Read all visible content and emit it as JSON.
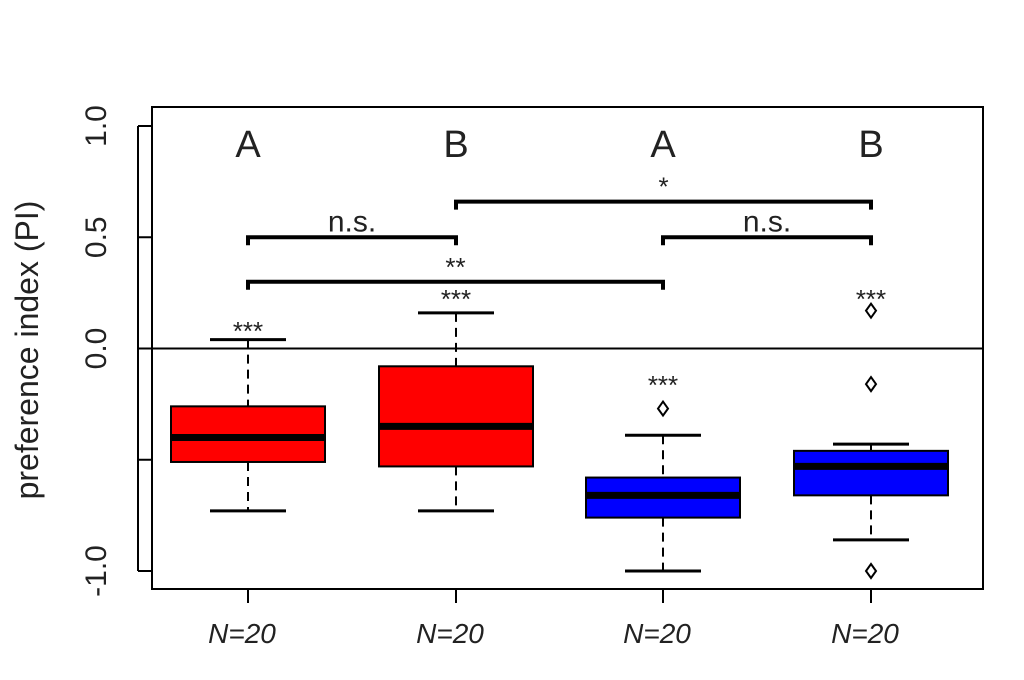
{
  "chart_data": {
    "type": "box",
    "ylabel": "preference index (PI)",
    "ylim": [
      -1.08,
      1.08
    ],
    "yticks": [
      {
        "value": 1.0,
        "label": "1.0"
      },
      {
        "value": 0.5,
        "label": "0.5"
      },
      {
        "value": 0.0,
        "label": "0.0"
      },
      {
        "value": -0.5,
        "label": ""
      },
      {
        "value": -1.0,
        "label": "-1.0"
      }
    ],
    "reference_line": 0,
    "groups": [
      {
        "n_label": "N=20",
        "color": "#ff0000",
        "letter": "A",
        "stars": "***",
        "whisker_low": -0.73,
        "q1": -0.51,
        "median": -0.4,
        "q3": -0.26,
        "whisker_high": 0.04,
        "outliers": []
      },
      {
        "n_label": "N=20",
        "color": "#ff0000",
        "letter": "B",
        "stars": "***",
        "whisker_low": -0.73,
        "q1": -0.53,
        "median": -0.35,
        "q3": -0.08,
        "whisker_high": 0.16,
        "outliers": []
      },
      {
        "n_label": "N=20",
        "color": "#0000ff",
        "letter": "A",
        "stars": "***",
        "whisker_low": -1.0,
        "q1": -0.76,
        "median": -0.66,
        "q3": -0.58,
        "whisker_high": -0.39,
        "outliers": [
          -0.27
        ]
      },
      {
        "n_label": "N=20",
        "color": "#0000ff",
        "letter": "B",
        "stars": "***",
        "whisker_low": -0.86,
        "q1": -0.66,
        "median": -0.53,
        "q3": -0.46,
        "whisker_high": -0.43,
        "outliers": [
          0.17,
          -0.16,
          -1.0
        ]
      }
    ],
    "comparisons": [
      {
        "from": 0,
        "to": 1,
        "y": 0.5,
        "label": "n.s."
      },
      {
        "from": 2,
        "to": 3,
        "y": 0.5,
        "label": "n.s."
      },
      {
        "from": 1,
        "to": 3,
        "y": 0.66,
        "label": "*"
      },
      {
        "from": 0,
        "to": 2,
        "y": 0.3,
        "label": "**"
      }
    ]
  }
}
